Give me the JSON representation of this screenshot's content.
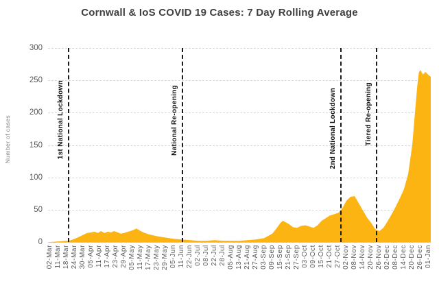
{
  "chart_data": {
    "type": "area",
    "title": "Cornwall & IoS COVID 19 Cases: 7 Day Rolling Average",
    "xlabel": "",
    "ylabel": "Number of cases",
    "ylim": [
      0,
      300
    ],
    "yticks": [
      0,
      50,
      100,
      150,
      200,
      250,
      300
    ],
    "grid": "horizontal-dashed",
    "legend": "none",
    "x_labels": [
      "02-Mar",
      "11-Mar",
      "18-Mar",
      "24-Mar",
      "30-Mar",
      "05-Apr",
      "11-Apr",
      "17-Apr",
      "23-Apr",
      "29-Apr",
      "05-May",
      "11-May",
      "17-May",
      "23-May",
      "29-May",
      "05-Jun",
      "11-Jun",
      "22-Jun",
      "02-Jul",
      "08-Jul",
      "22-Jul",
      "28-Jul",
      "05-Aug",
      "13-Aug",
      "21-Aug",
      "27-Aug",
      "03-Sep",
      "09-Sep",
      "15-Sep",
      "21-Sep",
      "27-Sep",
      "03-Oct",
      "09-Oct",
      "15-Oct",
      "21-Oct",
      "27-Oct",
      "02-Nov",
      "08-Nov",
      "14-Nov",
      "20-Nov",
      "26-Nov",
      "02-Dec",
      "08-Dec",
      "14-Dec",
      "20-Dec",
      "26-Dec",
      "01-Jan"
    ],
    "series": [
      {
        "name": "7 day rolling average of cases",
        "points": [
          [
            0,
            0
          ],
          [
            1,
            1
          ],
          [
            2,
            2
          ],
          [
            2.3,
            2
          ],
          [
            3,
            5
          ],
          [
            3.5,
            8
          ],
          [
            4,
            11
          ],
          [
            4.5,
            14
          ],
          [
            5,
            15
          ],
          [
            5.4,
            16
          ],
          [
            5.8,
            14
          ],
          [
            6.2,
            17
          ],
          [
            6.6,
            14
          ],
          [
            7,
            16
          ],
          [
            7.4,
            15
          ],
          [
            7.8,
            17
          ],
          [
            8.2,
            15
          ],
          [
            8.6,
            13
          ],
          [
            9,
            14
          ],
          [
            9.5,
            16
          ],
          [
            10,
            18
          ],
          [
            10.5,
            21
          ],
          [
            11,
            17
          ],
          [
            11.5,
            14
          ],
          [
            12,
            12
          ],
          [
            13,
            9
          ],
          [
            14,
            7
          ],
          [
            15,
            5
          ],
          [
            16,
            4
          ],
          [
            17,
            3
          ],
          [
            18,
            2
          ],
          [
            19,
            2
          ],
          [
            20,
            3
          ],
          [
            21,
            2
          ],
          [
            22,
            2
          ],
          [
            23,
            2
          ],
          [
            24,
            3
          ],
          [
            25,
            4
          ],
          [
            26,
            6
          ],
          [
            27,
            13
          ],
          [
            27.5,
            21
          ],
          [
            28,
            30
          ],
          [
            28.3,
            33
          ],
          [
            28.7,
            30
          ],
          [
            29,
            28
          ],
          [
            29.5,
            23
          ],
          [
            30,
            22
          ],
          [
            30.5,
            25
          ],
          [
            31,
            26
          ],
          [
            31.5,
            24
          ],
          [
            32,
            22
          ],
          [
            32.5,
            26
          ],
          [
            33,
            33
          ],
          [
            33.5,
            37
          ],
          [
            34,
            41
          ],
          [
            34.5,
            43
          ],
          [
            35,
            45
          ],
          [
            35.5,
            52
          ],
          [
            36,
            64
          ],
          [
            36.5,
            70
          ],
          [
            37,
            71
          ],
          [
            37.5,
            60
          ],
          [
            38,
            49
          ],
          [
            38.5,
            38
          ],
          [
            39,
            30
          ],
          [
            39.5,
            20
          ],
          [
            40,
            17
          ],
          [
            40.5,
            22
          ],
          [
            41,
            32
          ],
          [
            41.5,
            43
          ],
          [
            42,
            55
          ],
          [
            42.5,
            68
          ],
          [
            43,
            82
          ],
          [
            43.5,
            105
          ],
          [
            44,
            150
          ],
          [
            44.3,
            195
          ],
          [
            44.6,
            240
          ],
          [
            44.8,
            262
          ],
          [
            45,
            266
          ],
          [
            45.3,
            259
          ],
          [
            45.6,
            263
          ],
          [
            46,
            258
          ],
          [
            46.3,
            255
          ]
        ]
      }
    ],
    "annotations": [
      {
        "label": "1st National Lockdown",
        "x_index": 2.26,
        "label_bottom": 128
      },
      {
        "label": "National Re-opening",
        "x_index": 16.1,
        "label_bottom": 134
      },
      {
        "label": "2nd National Lockdown",
        "x_index": 35.3,
        "label_bottom": 113
      },
      {
        "label": "Tiered Re-opening",
        "x_index": 39.7,
        "label_bottom": 149
      }
    ],
    "colors": {
      "area": "#FBB412",
      "annotation_line": "#1A1A1A",
      "annotation_text": "#111111",
      "grid": "#D8D8D8",
      "axis_text": "#595959",
      "title_text": "#404040"
    }
  }
}
